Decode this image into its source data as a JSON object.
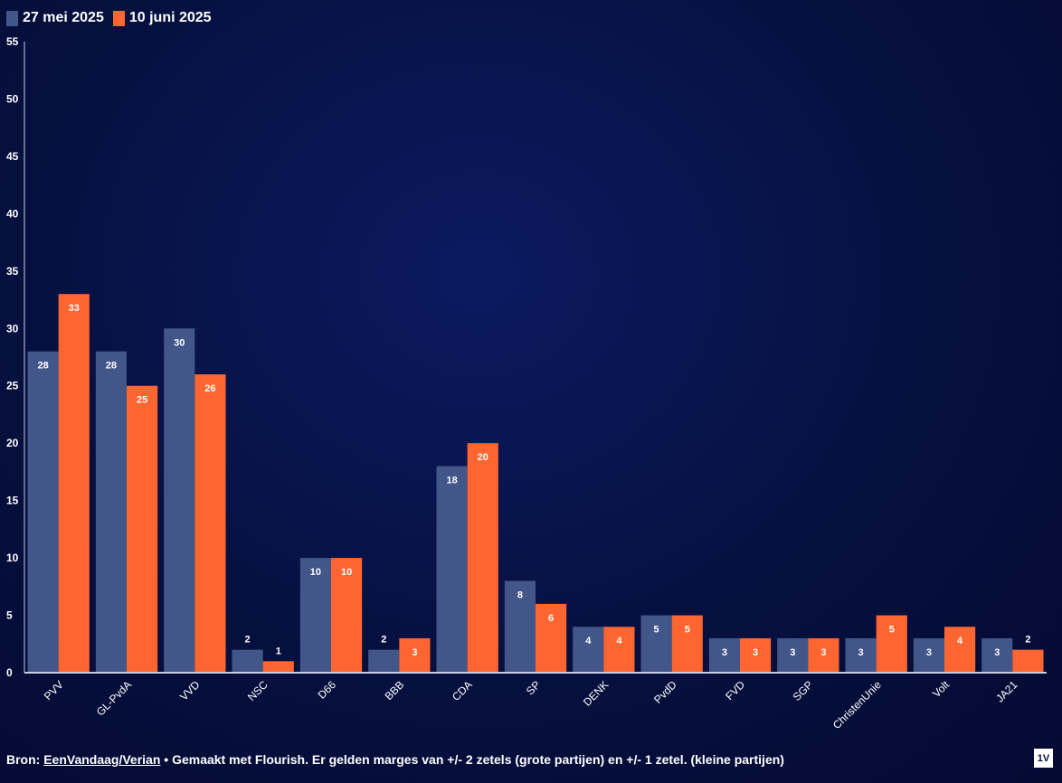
{
  "legend": {
    "series1_label": "27 mei 2025",
    "series2_label": "10 juni 2025"
  },
  "colors": {
    "series1": "#42568a",
    "series2": "#ff6530",
    "background": "#050c3a"
  },
  "chart_data": {
    "type": "bar",
    "categories": [
      "PVV",
      "GL-PvdA",
      "VVD",
      "NSC",
      "D66",
      "BBB",
      "CDA",
      "SP",
      "DENK",
      "PvdD",
      "FVD",
      "SGP",
      "ChristenUnie",
      "Volt",
      "JA21"
    ],
    "series": [
      {
        "name": "27 mei 2025",
        "values": [
          28,
          28,
          30,
          2,
          10,
          2,
          18,
          8,
          4,
          5,
          3,
          3,
          3,
          3,
          3
        ]
      },
      {
        "name": "10 juni 2025",
        "values": [
          33,
          25,
          26,
          1,
          10,
          3,
          20,
          6,
          4,
          5,
          3,
          3,
          5,
          4,
          2
        ]
      }
    ],
    "ylim": [
      0,
      55
    ],
    "yticks": [
      0,
      5,
      10,
      15,
      20,
      25,
      30,
      35,
      40,
      45,
      50,
      55
    ],
    "data_labels": true,
    "legend_position": "top-left",
    "grid": false
  },
  "footer": {
    "source_prefix": "Bron: ",
    "source_link": "EenVandaag/Verian",
    "text": " • Gemaakt met Flourish. Er gelden marges van +/- 2 zetels (grote partijen) en +/- 1 zetel. (kleine partijen)"
  },
  "logo": {
    "text": "1V"
  }
}
